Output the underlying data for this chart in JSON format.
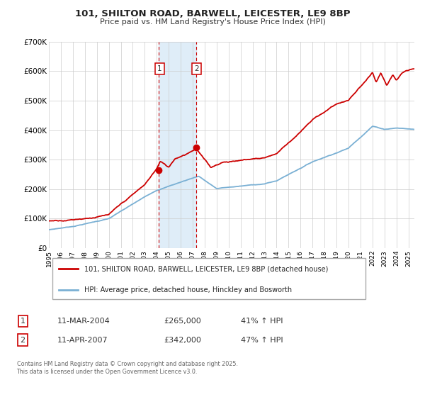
{
  "title1": "101, SHILTON ROAD, BARWELL, LEICESTER, LE9 8BP",
  "title2": "Price paid vs. HM Land Registry's House Price Index (HPI)",
  "legend1": "101, SHILTON ROAD, BARWELL, LEICESTER, LE9 8BP (detached house)",
  "legend2": "HPI: Average price, detached house, Hinckley and Bosworth",
  "footer": "Contains HM Land Registry data © Crown copyright and database right 2025.\nThis data is licensed under the Open Government Licence v3.0.",
  "sale1_date": "11-MAR-2004",
  "sale1_price": "£265,000",
  "sale1_hpi": "41% ↑ HPI",
  "sale2_date": "11-APR-2007",
  "sale2_price": "£342,000",
  "sale2_hpi": "47% ↑ HPI",
  "sale1_x": 2004.19,
  "sale1_y": 265000,
  "sale2_x": 2007.27,
  "sale2_y": 342000,
  "vline1_x": 2004.19,
  "vline2_x": 2007.27,
  "shade_color": "#daeaf7",
  "red_color": "#cc0000",
  "blue_color": "#7ab0d4",
  "grid_color": "#cccccc",
  "bg_color": "#ffffff",
  "ylim_min": 0,
  "ylim_max": 700000,
  "xlim_min": 1995,
  "xlim_max": 2025.5,
  "yticks": [
    0,
    100000,
    200000,
    300000,
    400000,
    500000,
    600000,
    700000
  ],
  "ytick_labels": [
    "£0",
    "£100K",
    "£200K",
    "£300K",
    "£400K",
    "£500K",
    "£600K",
    "£700K"
  ]
}
